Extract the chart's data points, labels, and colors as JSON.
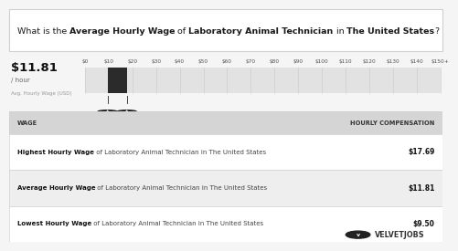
{
  "title_parts": [
    {
      "text": "What is the ",
      "bold": false
    },
    {
      "text": "Average Hourly Wage",
      "bold": true
    },
    {
      "text": " of ",
      "bold": false
    },
    {
      "text": "Laboratory Animal Technician",
      "bold": true
    },
    {
      "text": " in ",
      "bold": false
    },
    {
      "text": "The United States",
      "bold": true
    },
    {
      "text": "?",
      "bold": false
    }
  ],
  "avg_wage": "$11.81",
  "avg_label": "/ hour",
  "avg_sublabel": "Avg. Hourly Wage (USD)",
  "tick_labels": [
    "$0",
    "$10",
    "$20",
    "$30",
    "$40",
    "$50",
    "$60",
    "$70",
    "$80",
    "$90",
    "$100",
    "$110",
    "$120",
    "$130",
    "$140",
    "$150+"
  ],
  "bar_low": 9.5,
  "bar_high": 17.69,
  "bar_scale_max": 150,
  "bar_color": "#2b2b2b",
  "bar_bg_color": "#e2e2e2",
  "grid_color": "#c8c8c8",
  "table_header_bg": "#d5d5d5",
  "table_row_bg": [
    "#ffffff",
    "#eeeeee",
    "#ffffff"
  ],
  "table_sep_color": "#cccccc",
  "table_col_wage": "WAGE",
  "table_col_comp": "HOURLY COMPENSATION",
  "rows": [
    {
      "bold": "Highest Hourly Wage",
      "rest": " of Laboratory Animal Technician in The United States",
      "value": "$17.69"
    },
    {
      "bold": "Average Hourly Wage",
      "rest": " of Laboratory Animal Technician in The United States",
      "value": "$11.81"
    },
    {
      "bold": "Lowest Hourly Wage",
      "rest": " of Laboratory Animal Technician in The United States",
      "value": "$9.50"
    }
  ],
  "brand_text": "VELVETJOBS",
  "bg_color": "#f5f5f5",
  "title_bg": "#ffffff",
  "title_border": "#d0d0d0",
  "section_border": "#d0d0d0"
}
